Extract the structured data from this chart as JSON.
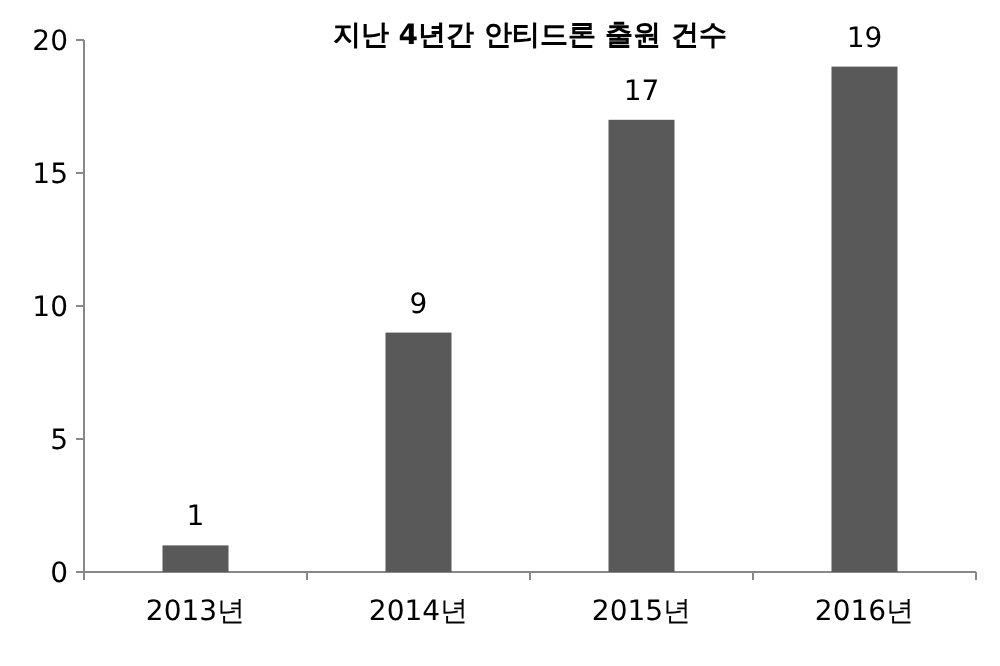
{
  "chart_data": {
    "type": "bar",
    "title": "지난 4년간 안티드론 출원 건수",
    "categories": [
      "2013년",
      "2014년",
      "2015년",
      "2016년"
    ],
    "values": [
      1,
      9,
      17,
      19
    ],
    "color": "#595959",
    "ylim": [
      0,
      20
    ],
    "yticks": [
      0,
      5,
      10,
      15,
      20
    ],
    "data_labels": true
  }
}
